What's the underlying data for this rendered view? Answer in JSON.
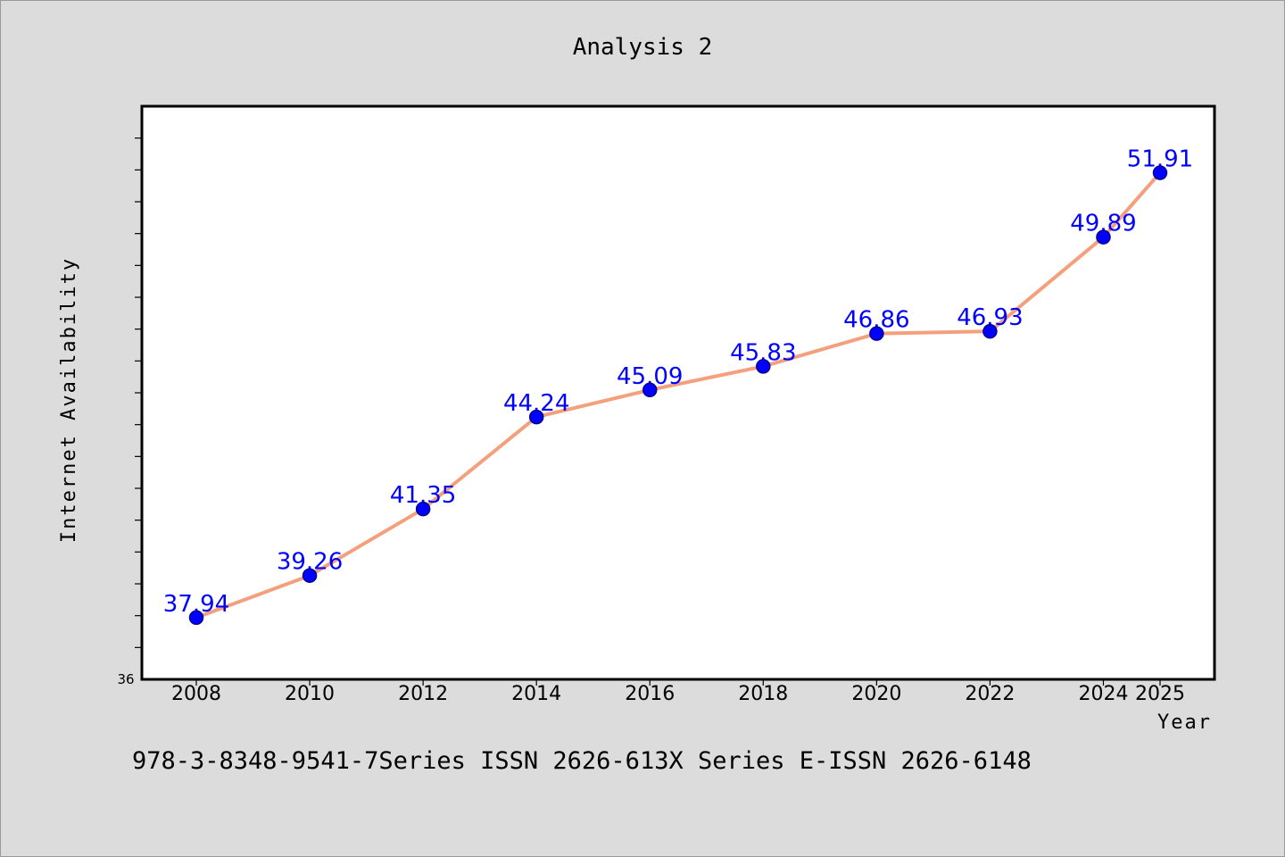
{
  "chart_data": {
    "type": "line",
    "title": "Analysis 2",
    "xlabel": "Year",
    "ylabel": "Internet Availability",
    "y_min_label": "36",
    "x": [
      "2008",
      "2010",
      "2012",
      "2014",
      "2016",
      "2018",
      "2020",
      "2022",
      "2024",
      "2025"
    ],
    "series": [
      {
        "values": [
          37.94,
          39.26,
          41.35,
          44.24,
          45.09,
          45.83,
          46.86,
          46.93,
          49.89,
          51.91
        ],
        "labels": [
          "37.94",
          "39.26",
          "41.35",
          "44.24",
          "45.09",
          "45.83",
          "46.86",
          "46.93",
          "49.89",
          "51.91"
        ]
      }
    ],
    "ylim": [
      36,
      54
    ],
    "grid": false,
    "legend": "none",
    "colors": {
      "line": "#f4a07c",
      "marker": "#0000ff",
      "marker_edge": "#00008b",
      "label": "#0000ff",
      "background": "#dcdcdc",
      "plot_background": "#ffffff"
    }
  },
  "footer": {
    "text": "978-3-8348-9541-7Series ISSN 2626-613X Series E-ISSN 2626-6148"
  }
}
